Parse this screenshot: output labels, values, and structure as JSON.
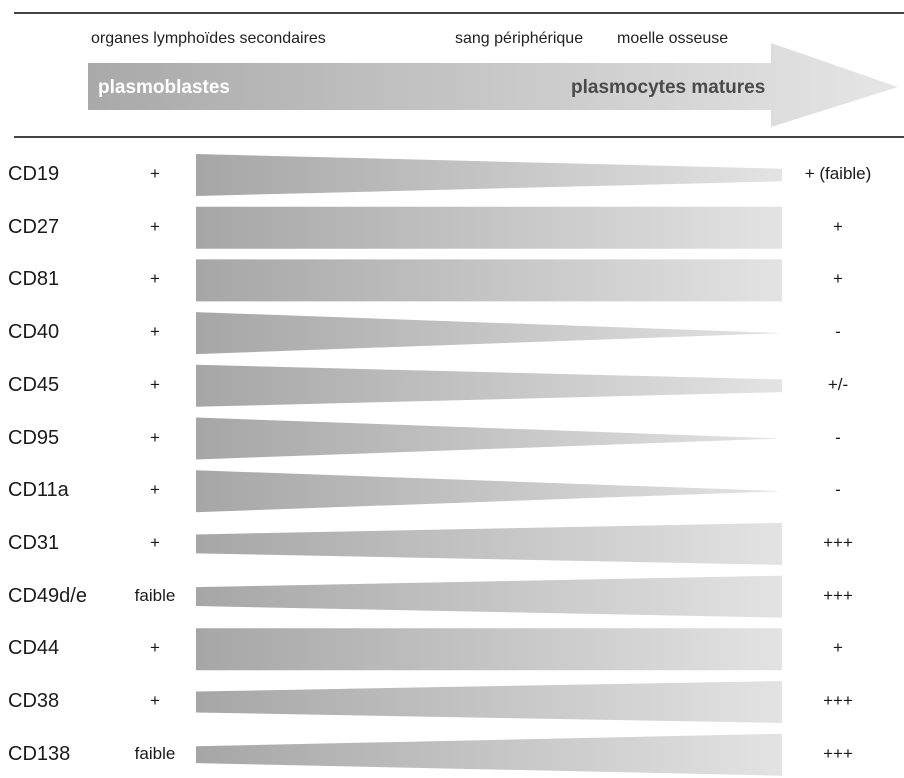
{
  "header": {
    "locations": [
      "organes lymphoïdes secondaires",
      "sang périphérique",
      "moelle osseuse"
    ],
    "stage_start": "plasmoblastes",
    "stage_end": "plasmocytes matures"
  },
  "colors": {
    "dark_gray": "#a6a6a6",
    "light_gray": "#e3e3e3",
    "arrow_start": "#a9a9a9",
    "arrow_end": "#e6e6e6",
    "rule": "#444444"
  },
  "markers": [
    {
      "name": "CD19",
      "left": "+",
      "right": "+ (faible)",
      "start_level": 1.0,
      "end_level": 0.3
    },
    {
      "name": "CD27",
      "left": "+",
      "right": "+",
      "start_level": 1.0,
      "end_level": 1.0
    },
    {
      "name": "CD81",
      "left": "+",
      "right": "+",
      "start_level": 1.0,
      "end_level": 1.0
    },
    {
      "name": "CD40",
      "left": "+",
      "right": "-",
      "start_level": 1.0,
      "end_level": 0.0
    },
    {
      "name": "CD45",
      "left": "+",
      "right": "+/-",
      "start_level": 1.0,
      "end_level": 0.3
    },
    {
      "name": "CD95",
      "left": "+",
      "right": "-",
      "start_level": 1.0,
      "end_level": 0.0
    },
    {
      "name": "CD11a",
      "left": "+",
      "right": "-",
      "start_level": 1.0,
      "end_level": 0.0
    },
    {
      "name": "CD31",
      "left": "+",
      "right": "+++",
      "start_level": 0.45,
      "end_level": 1.0
    },
    {
      "name": "CD49d/e",
      "left": "faible",
      "right": "+++",
      "start_level": 0.45,
      "end_level": 1.0
    },
    {
      "name": "CD44",
      "left": "+",
      "right": "+",
      "start_level": 1.0,
      "end_level": 1.0
    },
    {
      "name": "CD38",
      "left": "+",
      "right": "+++",
      "start_level": 0.5,
      "end_level": 1.0
    },
    {
      "name": "CD138",
      "left": "faible",
      "right": "+++",
      "start_level": 0.4,
      "end_level": 1.0
    }
  ]
}
